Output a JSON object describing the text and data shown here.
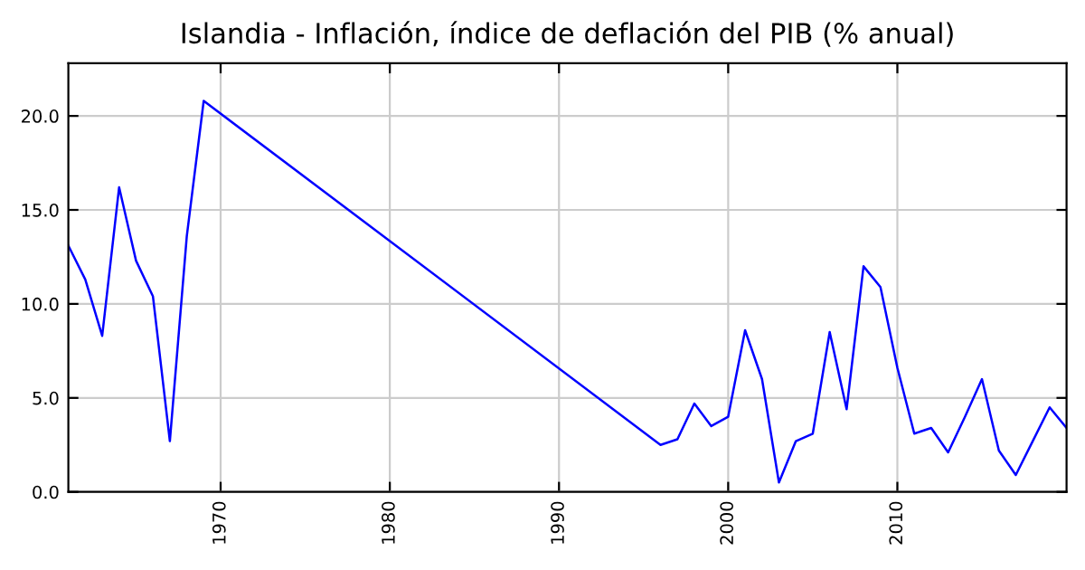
{
  "chart_data": {
    "type": "line",
    "title": "Islandia - Inflación, índice de deflación del PIB (% anual)",
    "x": [
      1961,
      1962,
      1963,
      1964,
      1965,
      1966,
      1967,
      1968,
      1969,
      1996,
      1997,
      1998,
      1999,
      2000,
      2001,
      2002,
      2003,
      2004,
      2005,
      2006,
      2007,
      2008,
      2009,
      2010,
      2011,
      2012,
      2013,
      2014,
      2015,
      2016,
      2017,
      2018,
      2019,
      2020
    ],
    "series": [
      {
        "color": "#0000ff",
        "values": [
          13.1,
          11.3,
          8.3,
          16.2,
          12.3,
          10.4,
          2.7,
          13.6,
          20.8,
          2.5,
          2.8,
          4.7,
          3.5,
          4.0,
          8.6,
          6.0,
          0.5,
          2.7,
          3.1,
          8.5,
          4.4,
          12.0,
          10.9,
          6.6,
          3.1,
          3.4,
          2.1,
          4.0,
          6.0,
          2.2,
          0.9,
          2.7,
          4.5,
          3.4
        ]
      }
    ],
    "xlim": [
      1961,
      2020
    ],
    "ylim": [
      0,
      22.8
    ],
    "xticks": [
      1970,
      1980,
      1990,
      2000,
      2010
    ],
    "yticks": [
      {
        "value": 0,
        "label": "0.0"
      },
      {
        "value": 5,
        "label": "5.0"
      },
      {
        "value": 10,
        "label": "10.0"
      },
      {
        "value": 15,
        "label": "15.0"
      },
      {
        "value": 20,
        "label": "20.0"
      }
    ],
    "grid": true,
    "marker": "none",
    "line_style": "solid"
  }
}
